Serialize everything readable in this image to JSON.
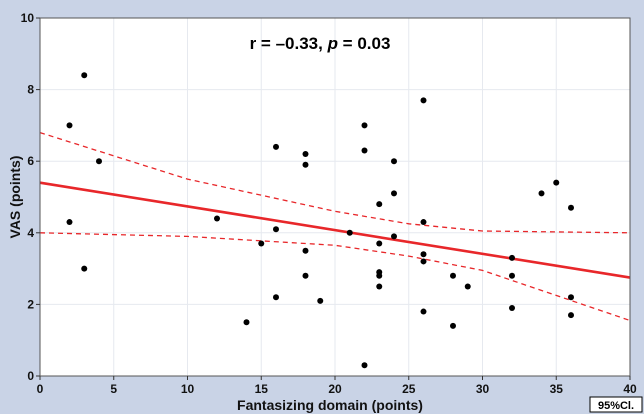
{
  "chart_data": {
    "type": "scatter",
    "annotation": {
      "r_text": "r = –0.33, ",
      "p_symbol": "p",
      "p_text": " = 0.03"
    },
    "xlabel": "Fantasizing domain (points)",
    "ylabel": "VAS (points)",
    "xlim": [
      0,
      40
    ],
    "ylim": [
      0,
      10
    ],
    "x_ticks": [
      0,
      5,
      10,
      15,
      20,
      25,
      30,
      35,
      40
    ],
    "y_ticks": [
      0,
      2,
      4,
      6,
      8,
      10
    ],
    "grid": true,
    "legend_text": "95%Cl.",
    "legend_position": "bottom-right",
    "colors": {
      "background": "#c9d3e6",
      "plot_area": "#ffffff",
      "points": "#000000",
      "regression": "#e8272a",
      "ci": "#e8272a",
      "grid": "#e6e9ef"
    },
    "points": [
      {
        "x": 2,
        "y": 7.0
      },
      {
        "x": 2,
        "y": 4.3
      },
      {
        "x": 3,
        "y": 8.4
      },
      {
        "x": 3,
        "y": 3.0
      },
      {
        "x": 4,
        "y": 6.0
      },
      {
        "x": 12,
        "y": 4.4
      },
      {
        "x": 14,
        "y": 1.5
      },
      {
        "x": 15,
        "y": 3.7
      },
      {
        "x": 16,
        "y": 6.4
      },
      {
        "x": 16,
        "y": 4.1
      },
      {
        "x": 16,
        "y": 2.2
      },
      {
        "x": 18,
        "y": 6.2
      },
      {
        "x": 18,
        "y": 5.9
      },
      {
        "x": 18,
        "y": 3.5
      },
      {
        "x": 18,
        "y": 2.8
      },
      {
        "x": 19,
        "y": 2.1
      },
      {
        "x": 21,
        "y": 4.0
      },
      {
        "x": 22,
        "y": 7.0
      },
      {
        "x": 22,
        "y": 6.3
      },
      {
        "x": 22,
        "y": 0.3
      },
      {
        "x": 23,
        "y": 4.8
      },
      {
        "x": 23,
        "y": 3.7
      },
      {
        "x": 23,
        "y": 2.9
      },
      {
        "x": 23,
        "y": 2.8
      },
      {
        "x": 23,
        "y": 2.5
      },
      {
        "x": 24,
        "y": 6.0
      },
      {
        "x": 24,
        "y": 5.1
      },
      {
        "x": 24,
        "y": 3.9
      },
      {
        "x": 26,
        "y": 7.7
      },
      {
        "x": 26,
        "y": 4.3
      },
      {
        "x": 26,
        "y": 3.4
      },
      {
        "x": 26,
        "y": 3.2
      },
      {
        "x": 26,
        "y": 1.8
      },
      {
        "x": 28,
        "y": 2.8
      },
      {
        "x": 28,
        "y": 1.4
      },
      {
        "x": 29,
        "y": 2.5
      },
      {
        "x": 32,
        "y": 3.3
      },
      {
        "x": 32,
        "y": 2.8
      },
      {
        "x": 32,
        "y": 1.9
      },
      {
        "x": 34,
        "y": 5.1
      },
      {
        "x": 35,
        "y": 5.4
      },
      {
        "x": 36,
        "y": 4.7
      },
      {
        "x": 36,
        "y": 2.2
      },
      {
        "x": 36,
        "y": 1.7
      }
    ],
    "regression": {
      "x": [
        0,
        40
      ],
      "y": [
        5.4,
        2.75
      ]
    },
    "ci_upper": {
      "x": [
        0,
        10,
        20,
        25,
        30,
        40
      ],
      "y": [
        6.8,
        5.5,
        4.6,
        4.25,
        4.05,
        4.0
      ]
    },
    "ci_lower": {
      "x": [
        0,
        10,
        20,
        25,
        30,
        40
      ],
      "y": [
        4.0,
        3.9,
        3.65,
        3.35,
        2.95,
        1.55
      ]
    }
  }
}
